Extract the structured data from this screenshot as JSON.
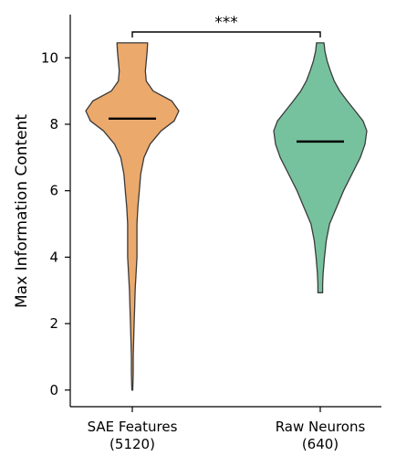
{
  "chart_data": {
    "type": "violin",
    "ylabel": "Max Information Content",
    "ylim": [
      -0.5,
      11.3
    ],
    "yticks": [
      "0",
      "2",
      "4",
      "6",
      "8",
      "10"
    ],
    "grid": false,
    "legend": "none",
    "significance": "***",
    "series": [
      {
        "category": "SAE Features",
        "count_label": "(5120)",
        "color": "#EBA96C",
        "edge_color": "#3a3a3a",
        "median": 8.17,
        "min": 0.0,
        "max": 10.45,
        "profile_y": [
          0.0,
          0.5,
          1.0,
          1.5,
          2.0,
          2.5,
          3.0,
          3.5,
          4.0,
          4.5,
          5.0,
          5.5,
          6.0,
          6.5,
          7.0,
          7.4,
          7.8,
          8.1,
          8.4,
          8.7,
          9.0,
          9.3,
          9.6,
          9.9,
          10.2,
          10.45
        ],
        "profile_density": [
          0.01,
          0.02,
          0.02,
          0.03,
          0.04,
          0.05,
          0.06,
          0.08,
          0.1,
          0.1,
          0.1,
          0.12,
          0.15,
          0.18,
          0.25,
          0.38,
          0.62,
          0.9,
          1.0,
          0.85,
          0.45,
          0.3,
          0.28,
          0.3,
          0.32,
          0.33
        ]
      },
      {
        "category": "Raw Neurons",
        "count_label": "(640)",
        "color": "#77C29E",
        "edge_color": "#3a3a3a",
        "median": 7.48,
        "min": 2.93,
        "max": 10.45,
        "profile_y": [
          2.93,
          3.2,
          3.5,
          4.0,
          4.5,
          5.0,
          5.5,
          6.0,
          6.5,
          7.0,
          7.4,
          7.8,
          8.1,
          8.4,
          8.7,
          9.0,
          9.3,
          9.6,
          9.9,
          10.2,
          10.45
        ],
        "profile_density": [
          0.05,
          0.05,
          0.06,
          0.09,
          0.13,
          0.2,
          0.35,
          0.5,
          0.68,
          0.86,
          0.96,
          1.0,
          0.92,
          0.75,
          0.58,
          0.42,
          0.3,
          0.22,
          0.15,
          0.1,
          0.08
        ]
      }
    ]
  }
}
